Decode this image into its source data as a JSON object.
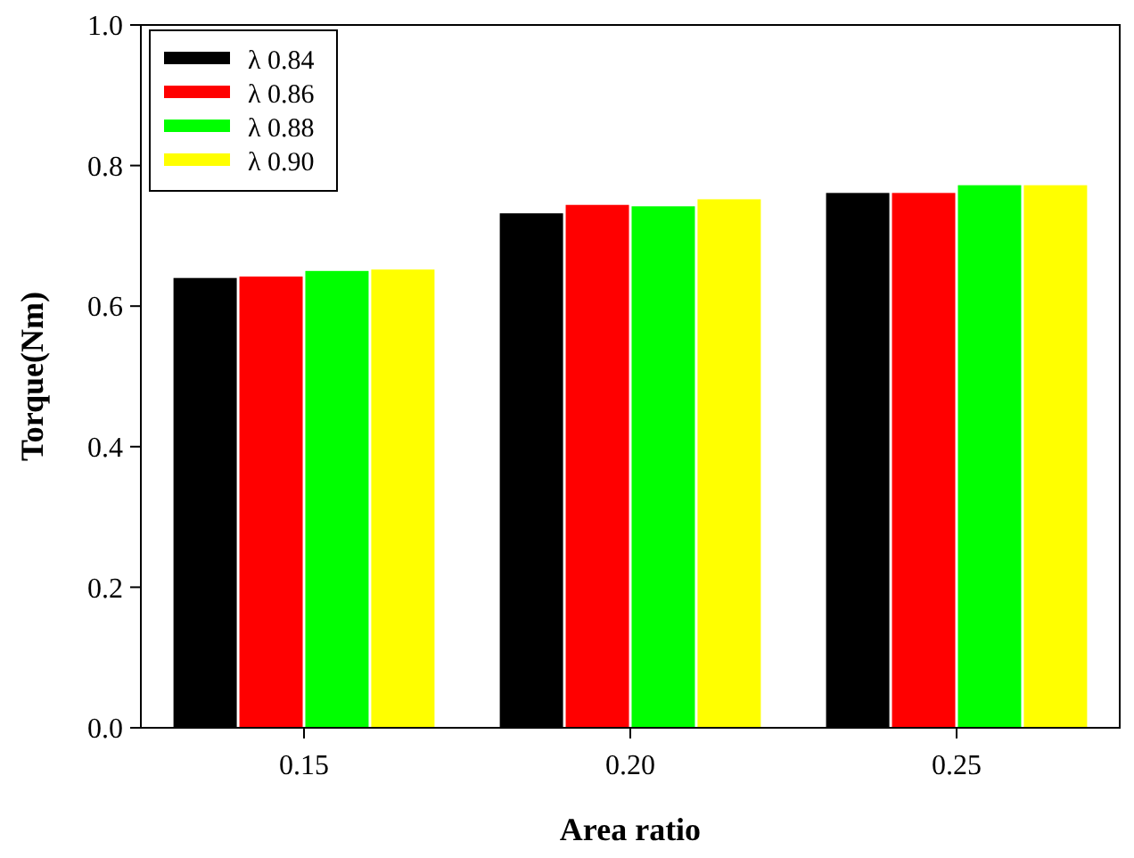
{
  "chart_data": {
    "type": "bar",
    "xlabel": "Area ratio",
    "ylabel": "Torque(Nm)",
    "categories": [
      "0.15",
      "0.20",
      "0.25"
    ],
    "series": [
      {
        "name": "λ 0.84",
        "color": "#000000",
        "values": [
          0.64,
          0.732,
          0.761
        ]
      },
      {
        "name": "λ 0.86",
        "color": "#ff0000",
        "values": [
          0.642,
          0.744,
          0.761
        ]
      },
      {
        "name": "λ 0.88",
        "color": "#00ff00",
        "values": [
          0.65,
          0.742,
          0.772
        ]
      },
      {
        "name": "λ 0.90",
        "color": "#ffff00",
        "values": [
          0.652,
          0.752,
          0.772
        ]
      }
    ],
    "ylim": [
      0,
      1
    ],
    "yticks": [
      {
        "value": 0,
        "label": "0.0"
      },
      0.2,
      0.4,
      0.6,
      0.8,
      {
        "value": 1,
        "label": "1.0"
      }
    ],
    "grid": false,
    "legend": "top left"
  }
}
